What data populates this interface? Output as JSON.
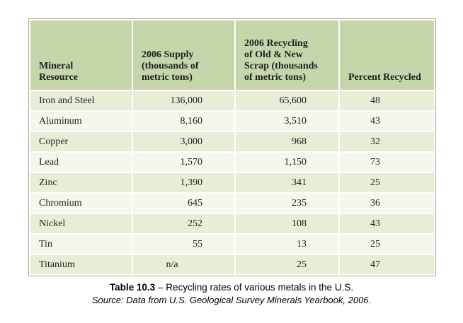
{
  "chart_data": {
    "type": "table",
    "title": "Table 10.3 – Recycling rates of various metals in the U.S.",
    "columns": [
      "Mineral\nResource",
      "2006 Supply\n(thousands of\nmetric tons)",
      "2006 Recycling\nof Old & New\nScrap (thousands\nof metric tons)",
      "Percent Recycled"
    ],
    "column_aligns": [
      "left",
      "right",
      "right",
      "center"
    ],
    "rows": [
      [
        "Iron and Steel",
        "136,000",
        "65,600",
        "48"
      ],
      [
        "Aluminum",
        "8,160",
        "3,510",
        "43"
      ],
      [
        "Copper",
        "3,000",
        "968",
        "32"
      ],
      [
        "Lead",
        "1,570",
        "1,150",
        "73"
      ],
      [
        "Zinc",
        "1,390",
        "341",
        "25"
      ],
      [
        "Chromium",
        "645",
        "235",
        "36"
      ],
      [
        "Nickel",
        "252",
        "108",
        "43"
      ],
      [
        "Tin",
        "55",
        "13",
        "25"
      ],
      [
        "Titanium",
        "n/a",
        "25",
        "47"
      ]
    ]
  },
  "caption": {
    "label": "Table 10.3",
    "text": " – Recycling rates of various metals in the U.S.",
    "source": "Source: Data from U.S. Geological Survey Minerals Yearbook, 2006."
  },
  "colors": {
    "header_bg": "#c4d6aa",
    "row_odd_bg": "#e6eed8",
    "row_even_bg": "#f3f7ec",
    "border_color": "#a3a89a",
    "text_color": "#1f1f1f"
  }
}
